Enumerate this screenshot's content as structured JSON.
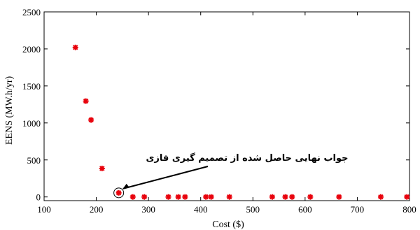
{
  "chart_data": {
    "type": "scatter",
    "title": "",
    "xlabel": "Cost ($)",
    "ylabel": "EENS (MW.h/yr)",
    "xlim": [
      100,
      800
    ],
    "ylim": [
      -50,
      2500
    ],
    "xticks": [
      100,
      200,
      300,
      400,
      500,
      600,
      700,
      800
    ],
    "yticks": [
      0,
      500,
      1000,
      1500,
      2000,
      2500
    ],
    "grid": false,
    "marker": "star",
    "marker_color": "#e8000b",
    "series": [
      {
        "x": [
          160,
          180,
          190,
          211,
          243,
          270,
          292,
          338,
          357,
          370,
          410,
          420,
          455,
          537,
          562,
          575,
          610,
          665,
          745,
          795
        ],
        "y": [
          2020,
          1295,
          1040,
          385,
          55,
          0,
          0,
          0,
          0,
          0,
          0,
          0,
          0,
          0,
          0,
          0,
          0,
          0,
          0,
          0
        ]
      }
    ],
    "annotations": [
      {
        "text": "جواب نهایی حاصل شده از تصمیم گیری فازی",
        "point": [
          243,
          55
        ]
      }
    ]
  }
}
